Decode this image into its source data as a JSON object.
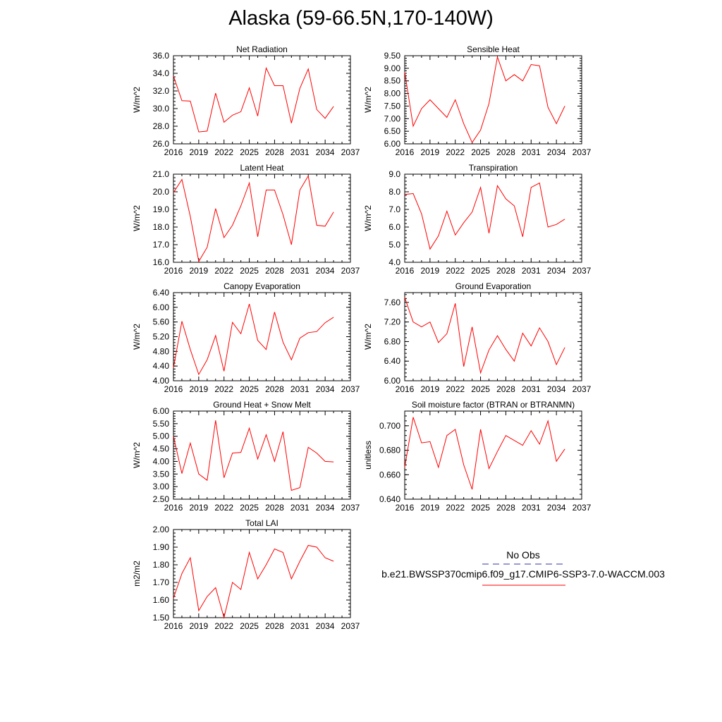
{
  "title": "Alaska (59-66.5N,170-140W)",
  "colors": {
    "model": "#ff0000",
    "obs": "#3333aa",
    "axis": "#000000"
  },
  "legend": {
    "obs_label": "No Obs",
    "model_label": "b.e21.BWSSP370cmip6.f09_g17.CMIP6-SSP3-7.0-WACCM.003"
  },
  "chart_data": [
    {
      "type": "line",
      "title": "Net Radiation",
      "ylabel": "W/m^2",
      "xlim": [
        2016,
        2037
      ],
      "xticks": [
        "2016",
        "2019",
        "2022",
        "2025",
        "2028",
        "2031",
        "2034",
        "2037"
      ],
      "ylim": [
        26,
        36
      ],
      "yticks": [
        "26.0",
        "28.0",
        "30.0",
        "32.0",
        "34.0",
        "36.0"
      ],
      "series": [
        {
          "x": [
            2016,
            2017,
            2018,
            2019,
            2020,
            2021,
            2022,
            2023,
            2024,
            2025,
            2026,
            2027,
            2028,
            2029,
            2030,
            2031,
            2032,
            2033,
            2034,
            2035
          ],
          "values": [
            33.7,
            30.9,
            30.85,
            27.35,
            27.45,
            31.75,
            28.45,
            29.25,
            29.65,
            32.35,
            29.15,
            34.6,
            32.6,
            32.6,
            28.35,
            32.3,
            34.5,
            29.9,
            28.9,
            30.25
          ]
        }
      ]
    },
    {
      "type": "line",
      "title": "Sensible Heat",
      "ylabel": "W/m^2",
      "xlim": [
        2016,
        2037
      ],
      "xticks": [
        "2016",
        "2019",
        "2022",
        "2025",
        "2028",
        "2031",
        "2034",
        "2037"
      ],
      "ylim": [
        6,
        9.5
      ],
      "yticks": [
        "6.00",
        "6.50",
        "7.00",
        "7.50",
        "8.00",
        "8.50",
        "9.00",
        "9.50"
      ],
      "series": [
        {
          "x": [
            2016,
            2017,
            2018,
            2019,
            2020,
            2021,
            2022,
            2023,
            2024,
            2025,
            2026,
            2027,
            2028,
            2029,
            2030,
            2031,
            2032,
            2033,
            2034,
            2035
          ],
          "values": [
            8.85,
            6.7,
            7.4,
            7.75,
            7.4,
            7.05,
            7.75,
            6.8,
            6.05,
            6.55,
            7.6,
            9.45,
            8.5,
            8.75,
            8.5,
            9.15,
            9.1,
            7.45,
            6.8,
            7.5
          ]
        }
      ]
    },
    {
      "type": "line",
      "title": "Latent Heat",
      "ylabel": "W/m^2",
      "xlim": [
        2016,
        2037
      ],
      "xticks": [
        "2016",
        "2019",
        "2022",
        "2025",
        "2028",
        "2031",
        "2034",
        "2037"
      ],
      "ylim": [
        16,
        21
      ],
      "yticks": [
        "16.0",
        "17.0",
        "18.0",
        "19.0",
        "20.0",
        "21.0"
      ],
      "series": [
        {
          "x": [
            2016,
            2017,
            2018,
            2019,
            2020,
            2021,
            2022,
            2023,
            2024,
            2025,
            2026,
            2027,
            2028,
            2029,
            2030,
            2031,
            2032,
            2033,
            2034,
            2035
          ],
          "values": [
            19.95,
            20.7,
            18.6,
            16.05,
            16.85,
            19.05,
            17.4,
            18.1,
            19.2,
            20.5,
            17.45,
            20.1,
            20.1,
            18.7,
            17.0,
            20.1,
            20.9,
            18.1,
            18.05,
            18.85
          ]
        }
      ]
    },
    {
      "type": "line",
      "title": "Transpiration",
      "ylabel": "W/m^2",
      "xlim": [
        2016,
        2037
      ],
      "xticks": [
        "2016",
        "2019",
        "2022",
        "2025",
        "2028",
        "2031",
        "2034",
        "2037"
      ],
      "ylim": [
        4,
        9
      ],
      "yticks": [
        "4.0",
        "5.0",
        "6.0",
        "7.0",
        "8.0",
        "9.0"
      ],
      "series": [
        {
          "x": [
            2016,
            2017,
            2018,
            2019,
            2020,
            2021,
            2022,
            2023,
            2024,
            2025,
            2026,
            2027,
            2028,
            2029,
            2030,
            2031,
            2032,
            2033,
            2034,
            2035
          ],
          "values": [
            7.85,
            7.9,
            6.75,
            4.75,
            5.5,
            6.9,
            5.55,
            6.25,
            6.85,
            8.25,
            5.65,
            8.35,
            7.6,
            7.2,
            5.45,
            8.25,
            8.5,
            6.0,
            6.15,
            6.45
          ]
        }
      ]
    },
    {
      "type": "line",
      "title": "Canopy Evaporation",
      "ylabel": "W/m^2",
      "xlim": [
        2016,
        2037
      ],
      "xticks": [
        "2016",
        "2019",
        "2022",
        "2025",
        "2028",
        "2031",
        "2034",
        "2037"
      ],
      "ylim": [
        4,
        6.4
      ],
      "yticks": [
        "4.00",
        "4.40",
        "4.80",
        "5.20",
        "5.60",
        "6.00",
        "6.40"
      ],
      "series": [
        {
          "x": [
            2016,
            2017,
            2018,
            2019,
            2020,
            2021,
            2022,
            2023,
            2024,
            2025,
            2026,
            2027,
            2028,
            2029,
            2030,
            2031,
            2032,
            2033,
            2034,
            2035
          ],
          "values": [
            4.35,
            5.62,
            4.85,
            4.17,
            4.57,
            5.23,
            4.26,
            5.59,
            5.28,
            6.09,
            5.1,
            4.85,
            5.87,
            5.05,
            4.57,
            5.16,
            5.31,
            5.34,
            5.58,
            5.73
          ]
        }
      ]
    },
    {
      "type": "line",
      "title": "Ground Evaporation",
      "ylabel": "W/m^2",
      "xlim": [
        2016,
        2037
      ],
      "xticks": [
        "2016",
        "2019",
        "2022",
        "2025",
        "2028",
        "2031",
        "2034",
        "2037"
      ],
      "ylim": [
        6,
        7.8
      ],
      "yticks": [
        "6.00",
        "6.40",
        "6.80",
        "7.20",
        "7.60"
      ],
      "series": [
        {
          "x": [
            2016,
            2017,
            2018,
            2019,
            2020,
            2021,
            2022,
            2023,
            2024,
            2025,
            2026,
            2027,
            2028,
            2029,
            2030,
            2031,
            2032,
            2033,
            2034,
            2035
          ],
          "values": [
            7.7,
            7.2,
            7.1,
            7.2,
            6.78,
            6.96,
            7.58,
            6.29,
            7.1,
            6.16,
            6.63,
            6.92,
            6.64,
            6.4,
            6.97,
            6.71,
            7.08,
            6.8,
            6.33,
            6.68
          ]
        }
      ]
    },
    {
      "type": "line",
      "title": "Ground Heat + Snow Melt",
      "ylabel": "W/m^2",
      "xlim": [
        2016,
        2037
      ],
      "xticks": [
        "2016",
        "2019",
        "2022",
        "2025",
        "2028",
        "2031",
        "2034",
        "2037"
      ],
      "ylim": [
        2.5,
        6
      ],
      "yticks": [
        "2.50",
        "3.00",
        "3.50",
        "4.00",
        "4.50",
        "5.00",
        "5.50",
        "6.00"
      ],
      "series": [
        {
          "x": [
            2016,
            2017,
            2018,
            2019,
            2020,
            2021,
            2022,
            2023,
            2024,
            2025,
            2026,
            2027,
            2028,
            2029,
            2030,
            2031,
            2032,
            2033,
            2034,
            2035
          ],
          "values": [
            5.0,
            3.52,
            4.73,
            3.5,
            3.25,
            5.63,
            3.35,
            4.33,
            4.36,
            5.32,
            4.1,
            5.06,
            4.0,
            5.18,
            2.85,
            2.96,
            4.56,
            4.33,
            4.0,
            3.98
          ]
        }
      ]
    },
    {
      "type": "line",
      "title": "Soil moisture factor (BTRAN or BTRANMN)",
      "ylabel": "unitless",
      "xlim": [
        2016,
        2037
      ],
      "xticks": [
        "2016",
        "2019",
        "2022",
        "2025",
        "2028",
        "2031",
        "2034",
        "2037"
      ],
      "ylim": [
        0.64,
        0.712
      ],
      "yticks": [
        "0.640",
        "0.660",
        "0.680",
        "0.700"
      ],
      "series": [
        {
          "x": [
            2016,
            2017,
            2018,
            2019,
            2020,
            2021,
            2022,
            2023,
            2024,
            2025,
            2026,
            2027,
            2028,
            2029,
            2030,
            2031,
            2032,
            2033,
            2034,
            2035
          ],
          "values": [
            0.666,
            0.707,
            0.686,
            0.687,
            0.666,
            0.692,
            0.697,
            0.668,
            0.648,
            0.697,
            0.665,
            0.679,
            0.692,
            0.688,
            0.684,
            0.696,
            0.685,
            0.704,
            0.671,
            0.681
          ]
        }
      ]
    },
    {
      "type": "line",
      "title": "Total LAI",
      "ylabel": "m2/m2",
      "xlim": [
        2016,
        2037
      ],
      "xticks": [
        "2016",
        "2019",
        "2022",
        "2025",
        "2028",
        "2031",
        "2034",
        "2037"
      ],
      "ylim": [
        1.5,
        2.0
      ],
      "yticks": [
        "1.50",
        "1.60",
        "1.70",
        "1.80",
        "1.90",
        "2.00"
      ],
      "series": [
        {
          "x": [
            2016,
            2017,
            2018,
            2019,
            2020,
            2021,
            2022,
            2023,
            2024,
            2025,
            2026,
            2027,
            2028,
            2029,
            2030,
            2031,
            2032,
            2033,
            2034,
            2035
          ],
          "values": [
            1.61,
            1.75,
            1.84,
            1.54,
            1.62,
            1.67,
            1.5,
            1.7,
            1.66,
            1.87,
            1.72,
            1.8,
            1.89,
            1.87,
            1.72,
            1.82,
            1.91,
            1.9,
            1.84,
            1.82
          ]
        }
      ]
    }
  ]
}
